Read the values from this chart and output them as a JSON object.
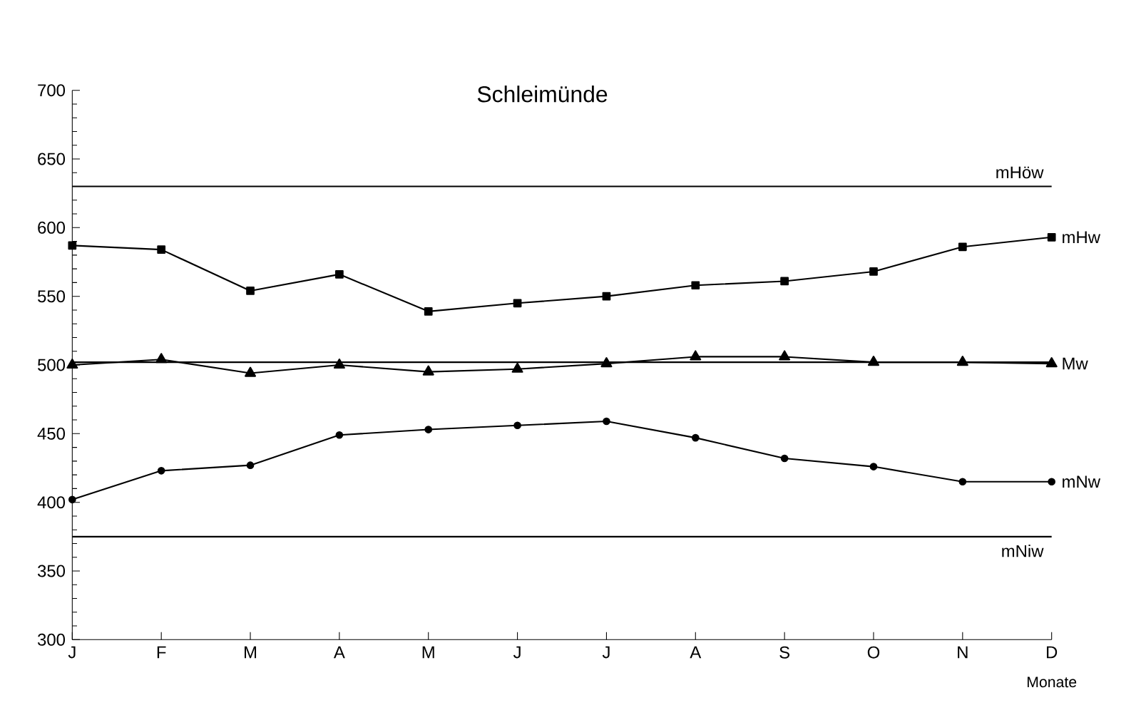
{
  "chart_data": {
    "type": "line",
    "title": "Schleimünde",
    "xlabel": "Monate",
    "categories": [
      "J",
      "F",
      "M",
      "A",
      "M",
      "J",
      "J",
      "A",
      "S",
      "O",
      "N",
      "D"
    ],
    "series": [
      {
        "name": "mHw",
        "color": "#000000",
        "marker": "square",
        "values": [
          587,
          584,
          554,
          566,
          539,
          545,
          550,
          558,
          561,
          568,
          586,
          593
        ]
      },
      {
        "name": "Mw",
        "color": "#000000",
        "marker": "triangle",
        "values": [
          500,
          504,
          494,
          500,
          495,
          497,
          501,
          506,
          506,
          502,
          502,
          501
        ]
      },
      {
        "name": "mNw",
        "color": "#000000",
        "marker": "circle",
        "values": [
          402,
          423,
          427,
          449,
          453,
          456,
          459,
          447,
          432,
          426,
          415,
          415
        ]
      }
    ],
    "ref_lines": [
      {
        "axis": "y",
        "value": 630,
        "label": "mHöw",
        "color": "#000000"
      },
      {
        "axis": "y",
        "value": 502,
        "color": "#000000"
      },
      {
        "axis": "y",
        "value": 375,
        "label": "mNiw",
        "color": "#000000"
      }
    ],
    "ylim": [
      300,
      700
    ],
    "yticks": [
      300,
      350,
      400,
      450,
      500,
      550,
      600,
      650,
      700
    ],
    "grid": false,
    "line_style": "solid"
  }
}
